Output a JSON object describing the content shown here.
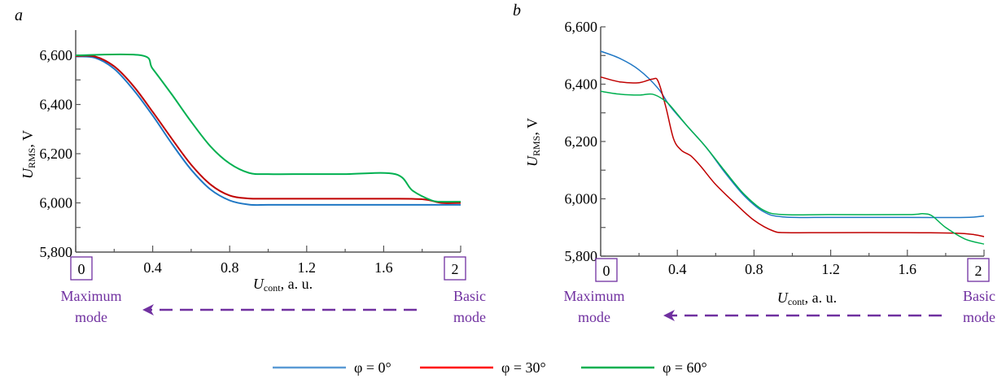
{
  "chart_data": [
    {
      "type": "line",
      "panel_label": "a",
      "title": "",
      "xlabel_main": "U",
      "xlabel_sub": "cont",
      "xlabel_rest": ", a. u.",
      "ylabel_main": "U",
      "ylabel_sub": "RMS",
      "ylabel_rest": ", V",
      "xlim": [
        0,
        2
      ],
      "ylim": [
        5800,
        6600
      ],
      "xticks": [
        0,
        0.4,
        0.8,
        1.2,
        1.6,
        2
      ],
      "xtick_labels": [
        "0",
        "0.4",
        "0.8",
        "1.2",
        "1.6",
        "2"
      ],
      "yticks": [
        5800,
        6000,
        6200,
        6400,
        6600
      ],
      "ytick_labels": [
        "5,800",
        "6,000",
        "6,200",
        "6,400",
        "6,600"
      ],
      "boxed_xticks": [
        "0",
        "2"
      ],
      "left_mode_label": [
        "Maximum",
        "mode"
      ],
      "right_mode_label": [
        "Basic",
        "mode"
      ],
      "arrow_direction": "right-to-left",
      "series": [
        {
          "name": "φ = 0°",
          "color": "#1f77c4",
          "x": [
            0,
            0.1,
            0.2,
            0.3,
            0.4,
            0.5,
            0.6,
            0.7,
            0.8,
            0.9,
            1.0,
            1.2,
            1.4,
            1.6,
            1.8,
            2.0
          ],
          "y": [
            6595,
            6590,
            6545,
            6460,
            6355,
            6240,
            6135,
            6055,
            6010,
            5993,
            5992,
            5992,
            5992,
            5992,
            5992,
            5992
          ]
        },
        {
          "name": "φ = 30°",
          "color": "#c00000",
          "x": [
            0,
            0.1,
            0.2,
            0.3,
            0.4,
            0.5,
            0.6,
            0.7,
            0.8,
            0.9,
            1.0,
            1.2,
            1.4,
            1.6,
            1.8,
            1.9,
            2.0
          ],
          "y": [
            6597,
            6595,
            6555,
            6475,
            6370,
            6260,
            6155,
            6075,
            6030,
            6018,
            6017,
            6017,
            6017,
            6017,
            6015,
            6000,
            6000
          ]
        },
        {
          "name": "φ = 60°",
          "color": "#00b050",
          "x": [
            0,
            0.34,
            0.4,
            0.5,
            0.6,
            0.7,
            0.8,
            0.9,
            1.0,
            1.2,
            1.4,
            1.66,
            1.75,
            1.85,
            1.9,
            2.0
          ],
          "y": [
            6600,
            6600,
            6545,
            6440,
            6330,
            6230,
            6160,
            6122,
            6117,
            6117,
            6117,
            6117,
            6050,
            6010,
            6005,
            6005
          ]
        }
      ]
    },
    {
      "type": "line",
      "panel_label": "b",
      "title": "",
      "xlabel_main": "U",
      "xlabel_sub": "cont",
      "xlabel_rest": ", a. u.",
      "ylabel_main": "U",
      "ylabel_sub": "RMS",
      "ylabel_rest": ", V",
      "xlim": [
        0,
        2
      ],
      "ylim": [
        5800,
        6600
      ],
      "xticks": [
        0,
        0.4,
        0.8,
        1.2,
        1.6,
        2
      ],
      "xtick_labels": [
        "0",
        "0.4",
        "0.8",
        "1.2",
        "1.6",
        "2"
      ],
      "yticks": [
        5800,
        6000,
        6200,
        6400,
        6600
      ],
      "ytick_labels": [
        "5,800",
        "6,000",
        "6,200",
        "6,400",
        "6,600"
      ],
      "boxed_xticks": [
        "0",
        "2"
      ],
      "left_mode_label": [
        "Maximum",
        "mode"
      ],
      "right_mode_label": [
        "Basic",
        "mode"
      ],
      "arrow_direction": "right-to-left",
      "series": [
        {
          "name": "φ = 0°",
          "color": "#1f77c4",
          "x": [
            0,
            0.1,
            0.2,
            0.3,
            0.36,
            0.45,
            0.55,
            0.65,
            0.75,
            0.85,
            0.95,
            1.2,
            1.6,
            1.9,
            2.0
          ],
          "y": [
            6515,
            6490,
            6450,
            6385,
            6325,
            6255,
            6180,
            6090,
            6010,
            5955,
            5937,
            5935,
            5935,
            5935,
            5940
          ]
        },
        {
          "name": "φ = 30°",
          "color": "#c00000",
          "x": [
            0,
            0.1,
            0.2,
            0.27,
            0.3,
            0.34,
            0.38,
            0.42,
            0.47,
            0.52,
            0.6,
            0.7,
            0.8,
            0.9,
            0.97,
            1.2,
            1.6,
            1.85,
            1.95,
            2.0
          ],
          "y": [
            6425,
            6408,
            6405,
            6418,
            6410,
            6320,
            6210,
            6170,
            6150,
            6115,
            6050,
            5985,
            5925,
            5888,
            5882,
            5882,
            5882,
            5880,
            5875,
            5868
          ]
        },
        {
          "name": "φ = 60°",
          "color": "#00b050",
          "x": [
            0,
            0.1,
            0.2,
            0.27,
            0.33,
            0.37,
            0.45,
            0.55,
            0.65,
            0.75,
            0.85,
            0.95,
            1.2,
            1.6,
            1.68,
            1.73,
            1.8,
            1.9,
            2.0
          ],
          "y": [
            6375,
            6365,
            6362,
            6365,
            6345,
            6320,
            6255,
            6180,
            6095,
            6015,
            5960,
            5945,
            5945,
            5945,
            5948,
            5940,
            5900,
            5860,
            5842
          ]
        }
      ]
    }
  ],
  "legend": [
    {
      "label": "φ = 0°",
      "color": "#5b9bd5"
    },
    {
      "label": "φ = 30°",
      "color": "#ff0000"
    },
    {
      "label": "φ = 60°",
      "color": "#00b050"
    }
  ],
  "mode_color": "#7030a0"
}
